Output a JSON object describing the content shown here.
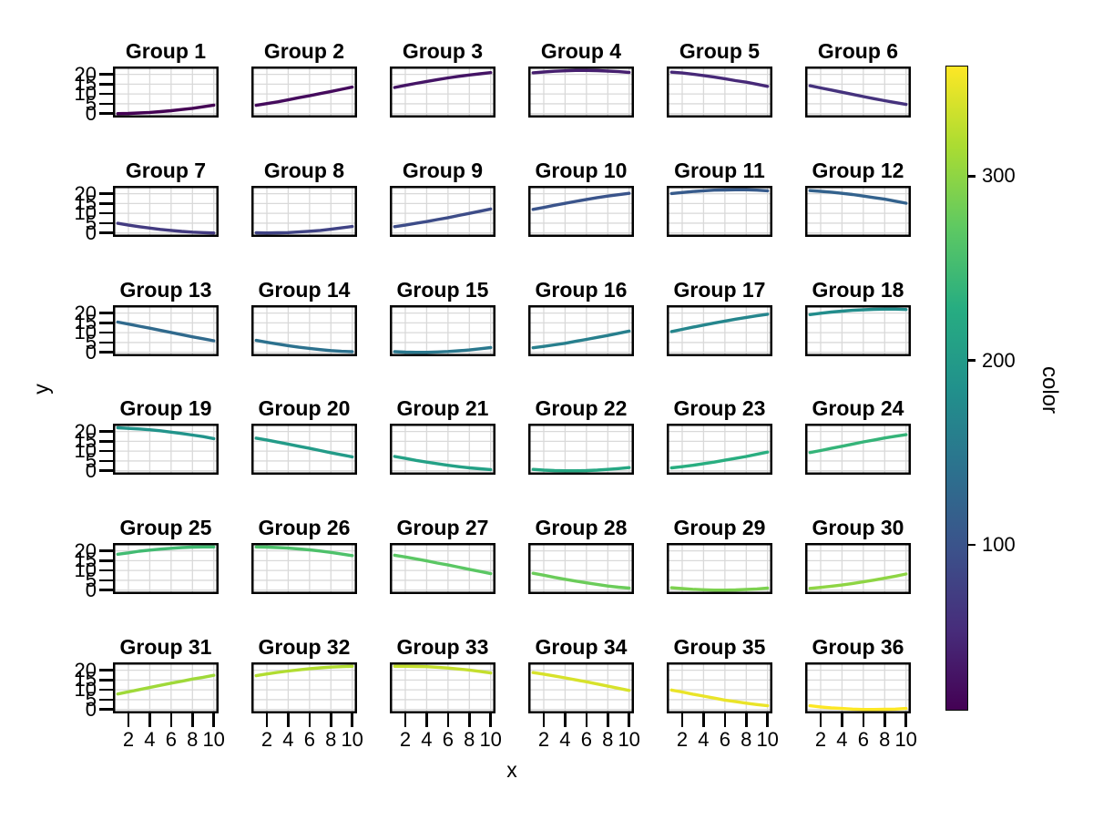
{
  "figure": {
    "background": "#ffffff",
    "x_axis_label": "x",
    "y_axis_label": "y",
    "x_ticks": [
      2,
      4,
      6,
      8,
      10
    ],
    "y_ticks": [
      0,
      5,
      10,
      15,
      20
    ],
    "x_range": [
      0.55,
      10.45
    ],
    "y_range": [
      -2,
      24
    ],
    "grid_color": "#d9d9d9",
    "panel_background": "#ffffff",
    "panel_border_color": "#000000",
    "text_color": "#000000"
  },
  "colorbar": {
    "title": "color",
    "ticks": [
      100,
      200,
      300
    ],
    "domain": [
      10,
      360
    ],
    "stops": [
      [
        0.0,
        "#440154"
      ],
      [
        0.125,
        "#472d7b"
      ],
      [
        0.25,
        "#3b528b"
      ],
      [
        0.375,
        "#2c728e"
      ],
      [
        0.5,
        "#21918c"
      ],
      [
        0.625,
        "#27ad81"
      ],
      [
        0.75,
        "#5ec962"
      ],
      [
        0.875,
        "#aadc32"
      ],
      [
        1.0,
        "#fde725"
      ]
    ]
  },
  "chart_data": {
    "type": "line",
    "facet_layout": {
      "rows": 6,
      "cols": 6
    },
    "x": [
      1,
      2,
      3,
      4,
      5,
      6,
      7,
      8,
      9,
      10
    ],
    "xlabel": "x",
    "ylabel": "y",
    "xlim": [
      0.55,
      10.45
    ],
    "ylim": [
      -2,
      24
    ],
    "grid": "major-only",
    "legend": "colorbar-right",
    "series": [
      {
        "name": "Group 1",
        "color_value": 10,
        "y": [
          0,
          0.1,
          0.3,
          0.6,
          1,
          1.5,
          2.1,
          2.7,
          3.5,
          4.3
        ]
      },
      {
        "name": "Group 2",
        "color_value": 20,
        "y": [
          4.2,
          5.1,
          6,
          7,
          8.1,
          9.1,
          10.2,
          11.3,
          12.4,
          13.5
        ]
      },
      {
        "name": "Group 3",
        "color_value": 30,
        "y": [
          13.3,
          14.4,
          15.4,
          16.4,
          17.3,
          18.2,
          19,
          19.7,
          20.3,
          20.9
        ]
      },
      {
        "name": "Group 4",
        "color_value": 40,
        "y": [
          20.8,
          21.2,
          21.6,
          21.8,
          22,
          22,
          21.9,
          21.7,
          21.4,
          21
        ]
      },
      {
        "name": "Group 5",
        "color_value": 50,
        "y": [
          21.1,
          20.7,
          20.1,
          19.4,
          18.6,
          17.8,
          16.8,
          16,
          15,
          13.9
        ]
      },
      {
        "name": "Group 6",
        "color_value": 60,
        "y": [
          14.2,
          13.1,
          12,
          10.9,
          9.8,
          8.7,
          7.6,
          6.6,
          5.6,
          4.7
        ]
      },
      {
        "name": "Group 7",
        "color_value": 70,
        "y": [
          4.9,
          4,
          3.2,
          2.5,
          1.8,
          1.3,
          0.8,
          0.4,
          0.2,
          0
        ]
      },
      {
        "name": "Group 8",
        "color_value": 80,
        "y": [
          0.1,
          0,
          0.1,
          0.2,
          0.5,
          0.9,
          1.3,
          1.9,
          2.6,
          3.3
        ]
      },
      {
        "name": "Group 9",
        "color_value": 90,
        "y": [
          3.2,
          4,
          4.9,
          5.8,
          6.8,
          7.8,
          8.9,
          10,
          11.1,
          12.2
        ]
      },
      {
        "name": "Group 10",
        "color_value": 100,
        "y": [
          12,
          13,
          14.1,
          15.1,
          16.1,
          17.1,
          18,
          18.8,
          19.5,
          20.2
        ]
      },
      {
        "name": "Group 11",
        "color_value": 110,
        "y": [
          20.1,
          20.6,
          21.1,
          21.5,
          21.8,
          21.9,
          22,
          22,
          21.8,
          21.5
        ]
      },
      {
        "name": "Group 12",
        "color_value": 120,
        "y": [
          21.6,
          21.2,
          20.8,
          20.2,
          19.6,
          18.8,
          18,
          17.2,
          16.2,
          15.2
        ]
      },
      {
        "name": "Group 13",
        "color_value": 130,
        "y": [
          15.4,
          14.4,
          13.3,
          12.3,
          11.2,
          10.1,
          9,
          7.9,
          6.9,
          5.9
        ]
      },
      {
        "name": "Group 14",
        "color_value": 140,
        "y": [
          6.1,
          5.1,
          4.2,
          3.4,
          2.6,
          2,
          1.4,
          0.9,
          0.5,
          0.3
        ]
      },
      {
        "name": "Group 15",
        "color_value": 150,
        "y": [
          0.3,
          0.1,
          0,
          0,
          0.2,
          0.4,
          0.8,
          1.2,
          1.8,
          2.4
        ]
      },
      {
        "name": "Group 16",
        "color_value": 160,
        "y": [
          2.3,
          3,
          3.8,
          4.6,
          5.6,
          6.6,
          7.6,
          8.6,
          9.7,
          10.8
        ]
      },
      {
        "name": "Group 17",
        "color_value": 170,
        "y": [
          10.6,
          11.7,
          12.8,
          13.9,
          14.9,
          15.9,
          16.9,
          17.8,
          18.6,
          19.4
        ]
      },
      {
        "name": "Group 18",
        "color_value": 180,
        "y": [
          19.2,
          19.9,
          20.5,
          21,
          21.4,
          21.7,
          21.9,
          22,
          22,
          21.8
        ]
      },
      {
        "name": "Group 19",
        "color_value": 190,
        "y": [
          21.9,
          21.6,
          21.3,
          20.9,
          20.4,
          19.7,
          19,
          18.2,
          17.4,
          16.4
        ]
      },
      {
        "name": "Group 20",
        "color_value": 200,
        "y": [
          16.6,
          15.7,
          14.6,
          13.6,
          12.5,
          11.4,
          10.3,
          9.2,
          8.1,
          7.1
        ]
      },
      {
        "name": "Group 21",
        "color_value": 210,
        "y": [
          7.3,
          6.3,
          5.3,
          4.4,
          3.6,
          2.8,
          2.1,
          1.5,
          1,
          0.6
        ]
      },
      {
        "name": "Group 22",
        "color_value": 220,
        "y": [
          0.7,
          0.3,
          0.1,
          0,
          0,
          0.1,
          0.3,
          0.7,
          1.1,
          1.6
        ]
      },
      {
        "name": "Group 23",
        "color_value": 230,
        "y": [
          1.5,
          2.1,
          2.8,
          3.6,
          4.4,
          5.4,
          6.3,
          7.3,
          8.4,
          9.5
        ]
      },
      {
        "name": "Group 24",
        "color_value": 240,
        "y": [
          9.3,
          10.3,
          11.4,
          12.5,
          13.6,
          14.7,
          15.7,
          16.7,
          17.6,
          18.4
        ]
      },
      {
        "name": "Group 25",
        "color_value": 250,
        "y": [
          18.3,
          19,
          19.8,
          20.4,
          20.9,
          21.3,
          21.7,
          21.9,
          22,
          22
        ]
      },
      {
        "name": "Group 26",
        "color_value": 260,
        "y": [
          22,
          21.9,
          21.7,
          21.4,
          21,
          20.5,
          19.9,
          19.2,
          18.4,
          17.6
        ]
      },
      {
        "name": "Group 27",
        "color_value": 270,
        "y": [
          17.8,
          16.9,
          15.9,
          14.9,
          13.8,
          12.8,
          11.7,
          10.6,
          9.5,
          8.4
        ]
      },
      {
        "name": "Group 28",
        "color_value": 280,
        "y": [
          8.6,
          7.6,
          6.5,
          5.5,
          4.6,
          3.7,
          2.9,
          2.1,
          1.5,
          1
        ]
      },
      {
        "name": "Group 29",
        "color_value": 290,
        "y": [
          1.2,
          0.8,
          0.4,
          0.2,
          0,
          0,
          0.1,
          0.3,
          0.6,
          1
        ]
      },
      {
        "name": "Group 30",
        "color_value": 300,
        "y": [
          0.9,
          1.4,
          2,
          2.6,
          3.4,
          4.2,
          5.1,
          6.1,
          7.1,
          8.2
        ]
      },
      {
        "name": "Group 31",
        "color_value": 310,
        "y": [
          7.9,
          9,
          10.1,
          11.2,
          12.3,
          13.4,
          14.4,
          15.5,
          16.4,
          17.4
        ]
      },
      {
        "name": "Group 32",
        "color_value": 320,
        "y": [
          17.2,
          18.1,
          18.9,
          19.6,
          20.2,
          20.8,
          21.2,
          21.6,
          21.8,
          22
        ]
      },
      {
        "name": "Group 33",
        "color_value": 330,
        "y": [
          22,
          22,
          21.9,
          21.8,
          21.5,
          21.1,
          20.6,
          20.1,
          19.4,
          18.6
        ]
      },
      {
        "name": "Group 34",
        "color_value": 340,
        "y": [
          18.8,
          18,
          17.1,
          16.1,
          15.1,
          14.1,
          13,
          11.9,
          10.8,
          9.7
        ]
      },
      {
        "name": "Group 35",
        "color_value": 350,
        "y": [
          9.9,
          8.9,
          7.8,
          6.8,
          5.8,
          4.8,
          4,
          3.2,
          2.5,
          1.9
        ]
      },
      {
        "name": "Group 36",
        "color_value": 360,
        "y": [
          1.9,
          1.3,
          0.8,
          0.5,
          0.2,
          0,
          0,
          0.1,
          0.2,
          0.5
        ]
      }
    ]
  }
}
